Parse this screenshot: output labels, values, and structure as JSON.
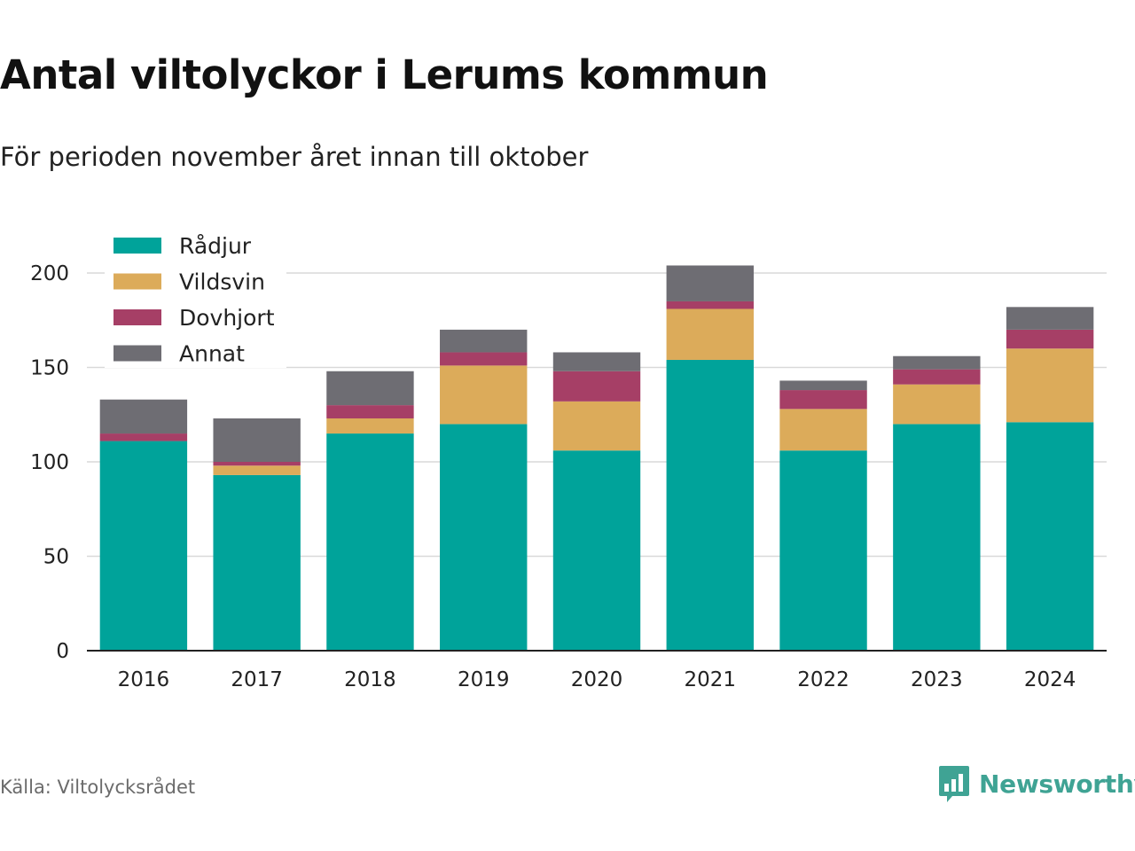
{
  "title": "Antal viltolyckor i Lerums kommun",
  "subtitle": "För perioden november året innan till oktober",
  "source": "Källa: Viltolycksrådet",
  "brand": {
    "name": "Newsworthy",
    "icon": "newsworthy-logo-icon",
    "color": "#3fa394"
  },
  "chart_data": {
    "type": "bar",
    "stacked": true,
    "categories": [
      "2016",
      "2017",
      "2018",
      "2019",
      "2020",
      "2021",
      "2022",
      "2023",
      "2024"
    ],
    "series": [
      {
        "name": "Rådjur",
        "color": "#00a39a",
        "values": [
          111,
          93,
          115,
          120,
          106,
          154,
          106,
          120,
          121
        ]
      },
      {
        "name": "Vildsvin",
        "color": "#dcab5a",
        "values": [
          0,
          5,
          8,
          31,
          26,
          27,
          22,
          21,
          39
        ]
      },
      {
        "name": "Dovhjort",
        "color": "#a63f66",
        "values": [
          4,
          2,
          7,
          7,
          16,
          4,
          10,
          8,
          10
        ]
      },
      {
        "name": "Annat",
        "color": "#6e6d73",
        "values": [
          18,
          23,
          18,
          12,
          10,
          19,
          5,
          7,
          12
        ]
      }
    ],
    "ylim": [
      0,
      200
    ],
    "yticks": [
      0,
      50,
      100,
      150,
      200
    ],
    "grid": true,
    "legend": "top-left"
  }
}
